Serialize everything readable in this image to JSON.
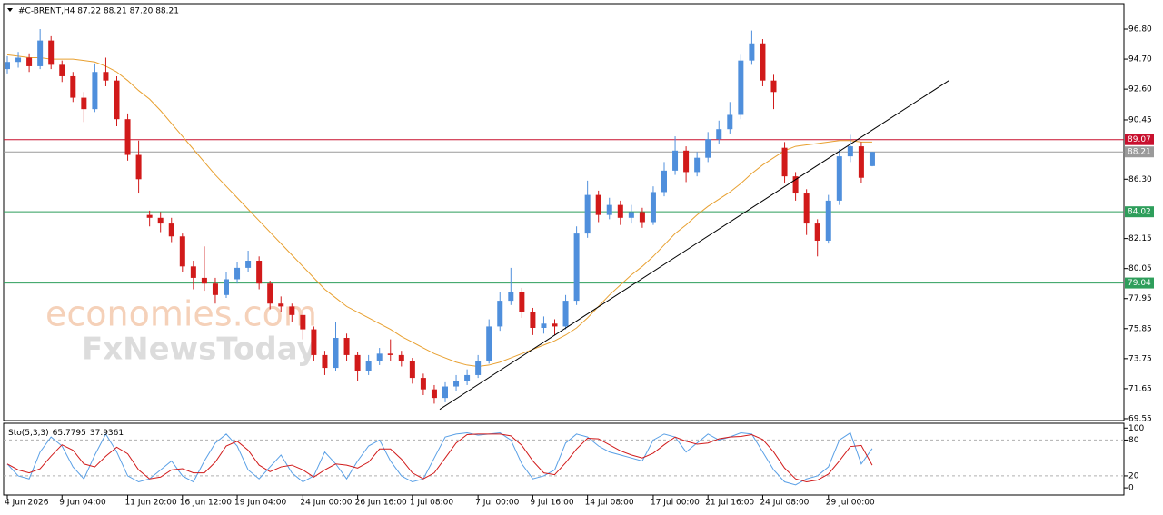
{
  "chart_data": [
    {
      "type": "candlestick",
      "title": "#C-BRENT,H4  87.22 88.21 87.20 88.21",
      "watermark": [
        "economies.com",
        "FxNewsToday"
      ],
      "categories": [
        "4 Jun 2026",
        null,
        null,
        null,
        null,
        "9 Jun 04:00",
        null,
        null,
        null,
        null,
        null,
        "11 Jun 20:00",
        null,
        null,
        null,
        null,
        "16 Jun 12:00",
        null,
        null,
        null,
        null,
        "19 Jun 04:00",
        null,
        null,
        null,
        null,
        null,
        "24 Jun 00:00",
        null,
        null,
        null,
        null,
        "26 Jun 16:00",
        null,
        null,
        null,
        null,
        "1 Jul 08:00",
        null,
        null,
        null,
        null,
        null,
        "7 Jul 00:00",
        null,
        null,
        null,
        null,
        "9 Jul 16:00",
        null,
        null,
        null,
        null,
        "14 Jul 08:00",
        null,
        null,
        null,
        null,
        null,
        "17 Jul 00:00",
        null,
        null,
        null,
        null,
        "21 Jul 16:00",
        null,
        null,
        null,
        null,
        "24 Jul 08:00",
        null,
        null,
        null,
        null,
        null,
        "29 Jul 00:00",
        null,
        null,
        null,
        null
      ],
      "open": [
        94.0,
        94.5,
        94.8,
        94.2,
        96.0,
        94.3,
        93.5,
        92.0,
        91.2,
        93.8,
        93.2,
        90.5,
        88.0,
        83.8,
        83.6,
        83.2,
        82.3,
        80.2,
        79.4,
        79.0,
        78.2,
        79.3,
        80.1,
        80.6,
        79.0,
        77.6,
        77.4,
        76.8,
        75.8,
        74.0,
        73.1,
        75.2,
        74.0,
        72.9,
        73.6,
        74.1,
        74.0,
        73.6,
        72.4,
        71.6,
        71.0,
        71.8,
        72.2,
        72.6,
        73.6,
        76.0,
        77.8,
        78.4,
        77.0,
        75.9,
        76.2,
        76.0,
        77.8,
        82.5,
        85.2,
        83.8,
        84.5,
        83.6,
        84.0,
        83.3,
        85.4,
        86.9,
        88.3,
        86.8,
        87.8,
        89.1,
        89.8,
        90.8,
        94.6,
        95.8,
        93.2,
        88.5,
        86.5,
        85.3,
        83.2,
        82.0,
        84.8,
        87.9,
        88.6,
        87.22
      ],
      "high": [
        94.9,
        95.2,
        95.1,
        96.8,
        96.3,
        94.6,
        93.8,
        92.4,
        94.4,
        94.8,
        93.5,
        90.9,
        89.0,
        84.1,
        84.0,
        83.6,
        82.5,
        80.6,
        81.6,
        79.4,
        79.8,
        80.5,
        81.3,
        80.9,
        79.2,
        78.1,
        77.6,
        77.0,
        76.0,
        74.3,
        76.3,
        75.5,
        74.2,
        74.0,
        74.5,
        75.1,
        74.3,
        73.8,
        72.7,
        71.9,
        72.1,
        72.6,
        73.0,
        74.0,
        76.5,
        78.4,
        80.1,
        78.7,
        77.3,
        76.7,
        76.5,
        78.2,
        83.0,
        86.2,
        85.5,
        85.0,
        84.8,
        84.5,
        84.3,
        85.8,
        87.5,
        89.3,
        88.6,
        88.2,
        89.6,
        90.4,
        91.7,
        95.0,
        96.7,
        96.1,
        93.6,
        88.9,
        86.8,
        85.6,
        83.5,
        85.2,
        88.4,
        89.4,
        88.9,
        88.21
      ],
      "low": [
        93.7,
        94.1,
        93.8,
        94.0,
        94.0,
        93.1,
        91.7,
        90.3,
        91.0,
        92.8,
        90.0,
        87.6,
        85.3,
        83.0,
        82.6,
        81.9,
        79.8,
        78.6,
        78.5,
        77.6,
        78.0,
        79.0,
        79.8,
        78.6,
        77.2,
        77.0,
        76.3,
        75.1,
        73.6,
        72.6,
        72.9,
        73.6,
        72.2,
        72.6,
        73.3,
        73.6,
        73.2,
        72.0,
        71.2,
        70.6,
        70.7,
        71.5,
        71.9,
        72.4,
        73.4,
        75.7,
        77.5,
        76.6,
        75.4,
        75.5,
        75.4,
        75.8,
        77.5,
        82.2,
        83.3,
        83.5,
        83.1,
        83.2,
        82.9,
        83.1,
        85.1,
        86.6,
        86.1,
        86.5,
        87.5,
        88.8,
        89.5,
        90.5,
        94.3,
        92.8,
        91.2,
        86.0,
        84.8,
        82.4,
        80.9,
        81.8,
        84.5,
        87.5,
        86.0,
        87.2
      ],
      "close": [
        94.5,
        94.8,
        94.2,
        96.0,
        94.3,
        93.5,
        92.0,
        91.2,
        93.8,
        93.2,
        90.5,
        88.0,
        86.3,
        83.6,
        83.2,
        82.3,
        80.2,
        79.4,
        79.0,
        78.2,
        79.3,
        80.1,
        80.6,
        79.0,
        77.6,
        77.4,
        76.8,
        75.8,
        74.0,
        73.1,
        75.2,
        74.0,
        72.9,
        73.6,
        74.1,
        74.0,
        73.6,
        72.4,
        71.6,
        71.0,
        71.8,
        72.2,
        72.6,
        73.6,
        76.0,
        77.8,
        78.4,
        77.0,
        75.9,
        76.2,
        76.0,
        77.8,
        82.5,
        85.2,
        83.8,
        84.5,
        83.6,
        84.0,
        83.3,
        85.4,
        86.9,
        88.3,
        86.8,
        87.8,
        89.1,
        89.8,
        90.8,
        94.6,
        95.8,
        93.2,
        92.4,
        86.5,
        85.3,
        83.2,
        82.0,
        84.8,
        87.9,
        88.6,
        86.4,
        88.21
      ],
      "up_color": "#4f8fdc",
      "down_color": "#d11a1a",
      "series": [
        {
          "name": "MA",
          "color": "#e8a030",
          "values": [
            95.0,
            94.9,
            94.8,
            94.8,
            94.7,
            94.7,
            94.7,
            94.6,
            94.5,
            94.2,
            93.8,
            93.2,
            92.5,
            91.9,
            91.1,
            90.2,
            89.3,
            88.4,
            87.5,
            86.6,
            85.8,
            85.0,
            84.2,
            83.4,
            82.6,
            81.8,
            81.0,
            80.2,
            79.4,
            78.6,
            78.0,
            77.4,
            77.0,
            76.6,
            76.2,
            75.8,
            75.3,
            74.9,
            74.5,
            74.1,
            73.8,
            73.5,
            73.3,
            73.2,
            73.3,
            73.5,
            73.8,
            74.1,
            74.4,
            74.7,
            75.0,
            75.4,
            75.9,
            76.6,
            77.4,
            78.2,
            78.9,
            79.6,
            80.2,
            80.9,
            81.7,
            82.5,
            83.1,
            83.8,
            84.4,
            84.9,
            85.4,
            86.0,
            86.7,
            87.3,
            87.8,
            88.3,
            88.6,
            88.7,
            88.8,
            88.9,
            89.0,
            89.0,
            88.9,
            88.9
          ]
        }
      ],
      "levels": [
        {
          "value": 89.07,
          "color": "#c8102e"
        },
        {
          "value": 88.21,
          "color": "#9a9a9a"
        },
        {
          "value": 84.02,
          "color": "#2e9e5b"
        },
        {
          "value": 79.04,
          "color": "#2e9e5b"
        }
      ],
      "trendline": {
        "x": [
          39.5,
          86
        ],
        "y": [
          70.2,
          93.2
        ],
        "color": "#000000"
      },
      "ylim": [
        69.42,
        98.58
      ],
      "yticks": [
        {
          "value": 96.8,
          "label": "96.80"
        },
        {
          "value": 94.7,
          "label": "94.70"
        },
        {
          "value": 92.6,
          "label": "92.60"
        },
        {
          "value": 90.45,
          "label": "90.45"
        },
        {
          "value": 86.3,
          "label": "86.30"
        },
        {
          "value": 82.15,
          "label": "82.15"
        },
        {
          "value": 80.05,
          "label": "80.05"
        },
        {
          "value": 77.95,
          "label": "77.95"
        },
        {
          "value": 75.85,
          "label": "75.85"
        },
        {
          "value": 73.75,
          "label": "73.75"
        },
        {
          "value": 71.65,
          "label": "71.65"
        },
        {
          "value": 69.55,
          "label": "69.55"
        }
      ]
    },
    {
      "type": "line",
      "title": "Sto(5,3,3)",
      "series": [
        {
          "name": "Main",
          "color": "#5aa0e6",
          "values": [
            40,
            20,
            15,
            60,
            85,
            70,
            35,
            15,
            55,
            90,
            60,
            20,
            10,
            15,
            30,
            45,
            20,
            10,
            45,
            75,
            90,
            70,
            30,
            15,
            35,
            55,
            25,
            10,
            20,
            60,
            40,
            15,
            45,
            70,
            80,
            45,
            20,
            10,
            15,
            50,
            85,
            90,
            92,
            88,
            90,
            92,
            80,
            40,
            15,
            20,
            30,
            75,
            90,
            85,
            70,
            60,
            55,
            50,
            45,
            80,
            90,
            85,
            60,
            75,
            90,
            80,
            85,
            92,
            90,
            60,
            30,
            10,
            5,
            15,
            20,
            35,
            80,
            92,
            40,
            65.7795
          ]
        },
        {
          "name": "Signal",
          "color": "#d11a1a",
          "values": [
            40,
            30,
            25,
            32,
            53,
            72,
            63,
            40,
            35,
            53,
            68,
            57,
            30,
            15,
            18,
            30,
            32,
            25,
            25,
            43,
            70,
            78,
            63,
            38,
            27,
            35,
            38,
            30,
            18,
            30,
            40,
            38,
            33,
            43,
            65,
            65,
            48,
            25,
            15,
            25,
            50,
            75,
            89,
            90,
            90,
            90,
            87,
            71,
            45,
            25,
            22,
            42,
            65,
            83,
            82,
            72,
            62,
            55,
            50,
            58,
            72,
            85,
            78,
            73,
            75,
            82,
            85,
            86,
            89,
            81,
            60,
            33,
            15,
            10,
            13,
            23,
            45,
            69,
            71,
            37.9361
          ]
        }
      ],
      "levels": [
        20,
        80
      ],
      "ylim": [
        -12,
        108
      ],
      "yticks": [
        0,
        20,
        80,
        100
      ]
    }
  ]
}
